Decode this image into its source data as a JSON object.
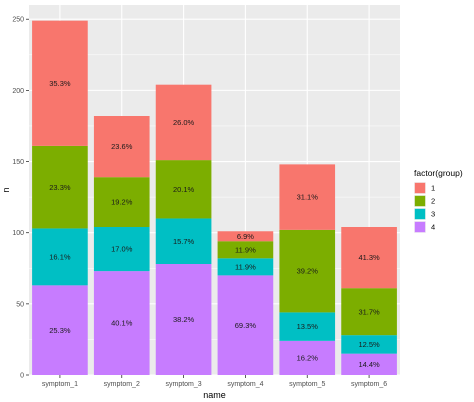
{
  "chart_data": {
    "type": "bar",
    "stacked": true,
    "xlabel": "name",
    "ylabel": "n",
    "ylim": [
      0,
      260
    ],
    "y_ticks": [
      0,
      50,
      100,
      150,
      200,
      250
    ],
    "categories": [
      "symptom_1",
      "symptom_2",
      "symptom_3",
      "symptom_4",
      "symptom_5",
      "symptom_6"
    ],
    "legend": {
      "title": "factor(group)",
      "position": "right",
      "entries": [
        "1",
        "2",
        "3",
        "4"
      ]
    },
    "series": [
      {
        "name": "4",
        "color": "#C77CFF",
        "values": [
          63,
          73,
          78,
          70,
          24,
          15
        ],
        "labels": [
          "25.3%",
          "40.1%",
          "38.2%",
          "69.3%",
          "16.2%",
          "14.4%"
        ]
      },
      {
        "name": "3",
        "color": "#00BFC4",
        "values": [
          40,
          31,
          32,
          12,
          20,
          13
        ],
        "labels": [
          "16.1%",
          "17.0%",
          "15.7%",
          "11.9%",
          "13.5%",
          "12.5%"
        ]
      },
      {
        "name": "2",
        "color": "#7CAE00",
        "values": [
          58,
          35,
          41,
          12,
          58,
          33
        ],
        "labels": [
          "23.3%",
          "19.2%",
          "20.1%",
          "11.9%",
          "39.2%",
          "31.7%"
        ]
      },
      {
        "name": "1",
        "color": "#F8766D",
        "values": [
          88,
          43,
          53,
          7,
          46,
          43
        ],
        "labels": [
          "35.3%",
          "23.6%",
          "26.0%",
          "6.9%",
          "31.1%",
          "41.3%"
        ]
      }
    ],
    "panel_background": "#EBEBEB",
    "grid": true,
    "grid_color": "#FFFFFF"
  }
}
